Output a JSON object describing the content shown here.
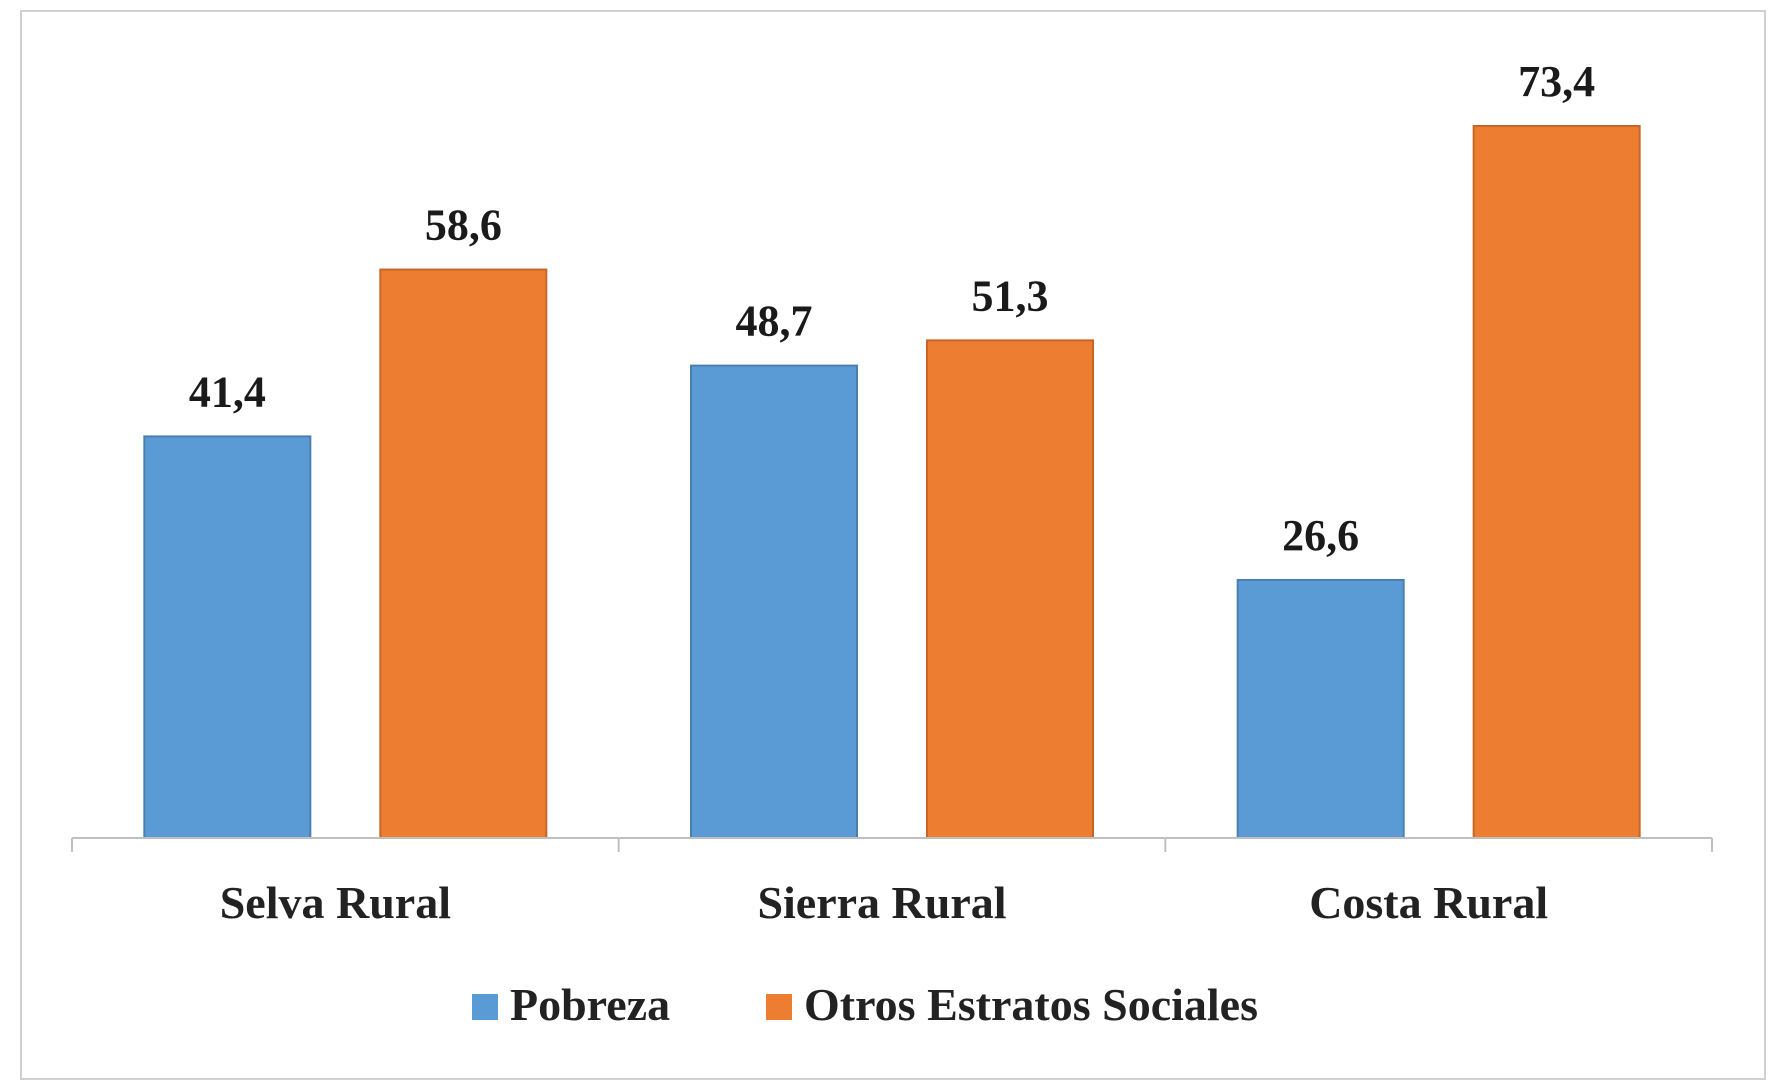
{
  "chart_data": {
    "type": "bar",
    "title": "",
    "xlabel": "",
    "ylabel": "",
    "ylim": [
      0,
      80
    ],
    "grid": false,
    "legend_position": "bottom",
    "categories": [
      "Selva Rural",
      "Sierra Rural",
      "Costa Rural"
    ],
    "series": [
      {
        "name": "Pobreza",
        "color": "#5B9BD5",
        "values": [
          41.4,
          48.7,
          26.6
        ],
        "labels": [
          "41,4",
          "48,7",
          "26,6"
        ]
      },
      {
        "name": "Otros Estratos Sociales",
        "color": "#ED7D31",
        "values": [
          58.6,
          51.3,
          73.4
        ],
        "labels": [
          "58,6",
          "51,3",
          "73,4"
        ]
      }
    ]
  }
}
